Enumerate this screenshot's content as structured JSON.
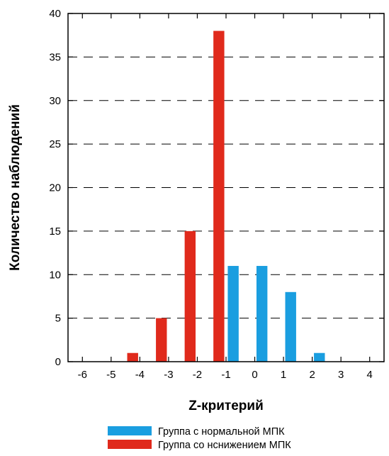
{
  "chart_data": {
    "type": "bar",
    "xlabel": "Z-критерий",
    "ylabel": "Количество наблюдений",
    "xlim": [
      -6.5,
      4.5
    ],
    "ylim": [
      0,
      40
    ],
    "x_ticks": [
      -6,
      -5,
      -4,
      -3,
      -2,
      -1,
      0,
      1,
      2,
      3,
      4
    ],
    "y_ticks": [
      0,
      5,
      10,
      15,
      20,
      25,
      30,
      35,
      40
    ],
    "grid": "horizontal-dashed",
    "legend_placement": "bottom",
    "series": [
      {
        "name": "Группа с нормальной МПК",
        "color": "#1a9ee0",
        "x": [
          -0.75,
          0.25,
          1.25,
          2.25
        ],
        "values": [
          11,
          11,
          8,
          1
        ]
      },
      {
        "name": "Группа со нснижением МПК",
        "color": "#e02a1c",
        "x": [
          -4.25,
          -3.25,
          -2.25,
          -1.25
        ],
        "values": [
          1,
          5,
          15,
          38
        ]
      }
    ]
  }
}
